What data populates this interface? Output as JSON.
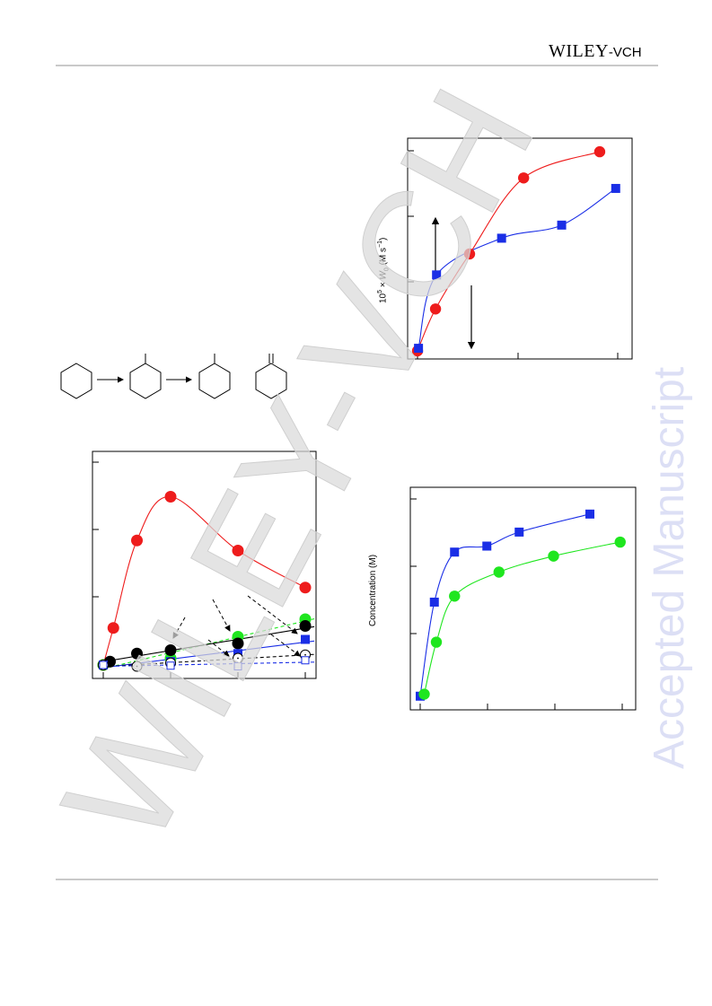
{
  "header": {
    "brand_main": "WILEY",
    "brand_suffix": "-VCH"
  },
  "side_watermark": "Accepted Manuscript",
  "diagonal_watermark": "WILEY-VCH",
  "colors": {
    "red": "#ee1c1c",
    "blue": "#1a2ee6",
    "green": "#1fe61f",
    "black": "#000000",
    "watermark": "#d9d9d9",
    "accepted": "#dcdff5"
  },
  "scheme": {
    "icons": [
      "cyclohexane-icon",
      "methylcyclohexane-icon",
      "methylcyclohexane-icon",
      "methylenecyclohexane-icon"
    ]
  },
  "chart_data": [
    {
      "type": "scatter",
      "title": "",
      "xlabel": "",
      "ylabel": "",
      "xlim": [
        -0.2,
        3.2
      ],
      "ylim": [
        -0.2,
        3.1
      ],
      "series": [
        {
          "color": "red",
          "marker": "circle",
          "x": [
            0,
            0.15,
            0.5,
            1.0,
            2.0,
            3.0
          ],
          "y": [
            0,
            0.55,
            1.85,
            2.5,
            1.7,
            1.15
          ]
        },
        {
          "color": "green",
          "marker": "circle",
          "x": [
            0,
            1.0,
            2.0,
            3.0
          ],
          "y": [
            0,
            0.1,
            0.42,
            0.68
          ]
        },
        {
          "color": "black",
          "marker": "circle",
          "x": [
            0.1,
            0.5,
            1.0,
            2.0,
            3.0
          ],
          "y": [
            0.05,
            0.17,
            0.22,
            0.32,
            0.58
          ]
        },
        {
          "color": "blue",
          "marker": "square",
          "x": [
            0,
            1.0,
            2.0,
            3.0
          ],
          "y": [
            0,
            0.05,
            0.17,
            0.38
          ]
        },
        {
          "color": "black",
          "marker": "open-circle",
          "x": [
            0,
            0.5,
            1.0,
            2.0,
            3.0
          ],
          "y": [
            0,
            -0.02,
            0.03,
            0.1,
            0.15
          ]
        },
        {
          "color": "blue",
          "marker": "open-square",
          "x": [
            0,
            1.0,
            2.0,
            3.0
          ],
          "y": [
            0,
            -0.01,
            -0.02,
            0.07
          ]
        }
      ]
    },
    {
      "type": "scatter",
      "title": "",
      "xlabel": "",
      "ylabel": "10^5 × W_0 (M s^-1)",
      "xlim": [
        -0.05,
        1.05
      ],
      "ylim": [
        -0.05,
        1.05
      ],
      "series": [
        {
          "color": "red",
          "marker": "circle",
          "x": [
            0,
            0.09,
            0.26,
            0.53,
            0.91
          ],
          "y": [
            0,
            0.16,
            0.37,
            0.66,
            0.76
          ]
        },
        {
          "color": "blue",
          "marker": "square",
          "x": [
            0.005,
            0.095,
            0.42,
            0.72,
            0.99
          ],
          "y": [
            0.01,
            0.29,
            0.43,
            0.48,
            0.62
          ]
        }
      ]
    },
    {
      "type": "scatter",
      "title": "",
      "xlabel": "",
      "ylabel": "Concentration  (M)",
      "xlim": [
        -0.05,
        1.05
      ],
      "ylim": [
        -0.05,
        1.05
      ],
      "series": [
        {
          "color": "blue",
          "marker": "square",
          "x": [
            0,
            0.07,
            0.17,
            0.33,
            0.49,
            0.84
          ],
          "y": [
            0.01,
            0.48,
            0.73,
            0.76,
            0.83,
            0.92
          ]
        },
        {
          "color": "green",
          "marker": "circle",
          "x": [
            0.02,
            0.08,
            0.17,
            0.39,
            0.66,
            0.99
          ],
          "y": [
            0.02,
            0.28,
            0.51,
            0.63,
            0.71,
            0.78
          ]
        }
      ]
    }
  ]
}
